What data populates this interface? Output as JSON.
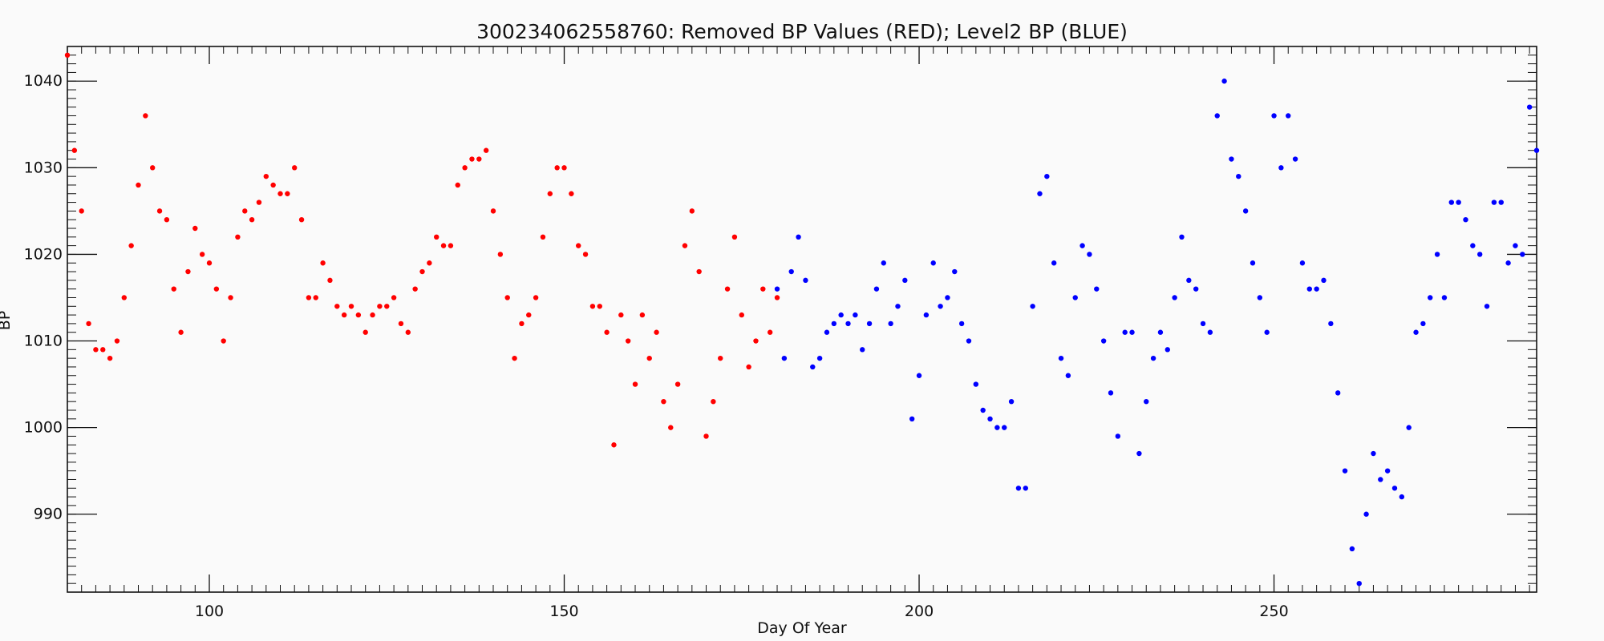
{
  "chart_data": {
    "type": "scatter",
    "title": "300234062558760: Removed BP Values (RED); Level2 BP (BLUE)",
    "xlabel": "Day Of Year",
    "ylabel": "BP",
    "xlim": [
      80,
      287
    ],
    "ylim": [
      981,
      1044
    ],
    "x_ticks": [
      100,
      150,
      200,
      250
    ],
    "y_ticks": [
      990,
      1000,
      1010,
      1020,
      1030,
      1040
    ],
    "grid": false,
    "legend": "none",
    "series": [
      {
        "name": "Removed BP Values (RED)",
        "color": "#ff0000",
        "points": [
          [
            80,
            1043
          ],
          [
            81,
            1032
          ],
          [
            82,
            1025
          ],
          [
            83,
            1012
          ],
          [
            84,
            1009
          ],
          [
            85,
            1009
          ],
          [
            86,
            1008
          ],
          [
            87,
            1010
          ],
          [
            88,
            1015
          ],
          [
            89,
            1021
          ],
          [
            90,
            1028
          ],
          [
            91,
            1036
          ],
          [
            92,
            1030
          ],
          [
            93,
            1025
          ],
          [
            94,
            1024
          ],
          [
            95,
            1016
          ],
          [
            96,
            1011
          ],
          [
            97,
            1018
          ],
          [
            98,
            1023
          ],
          [
            99,
            1020
          ],
          [
            100,
            1019
          ],
          [
            101,
            1016
          ],
          [
            102,
            1010
          ],
          [
            103,
            1015
          ],
          [
            104,
            1022
          ],
          [
            105,
            1025
          ],
          [
            106,
            1024
          ],
          [
            107,
            1026
          ],
          [
            108,
            1029
          ],
          [
            109,
            1028
          ],
          [
            110,
            1027
          ],
          [
            111,
            1027
          ],
          [
            112,
            1030
          ],
          [
            113,
            1024
          ],
          [
            114,
            1015
          ],
          [
            115,
            1015
          ],
          [
            116,
            1019
          ],
          [
            117,
            1017
          ],
          [
            118,
            1014
          ],
          [
            119,
            1013
          ],
          [
            120,
            1014
          ],
          [
            121,
            1013
          ],
          [
            122,
            1011
          ],
          [
            123,
            1013
          ],
          [
            124,
            1014
          ],
          [
            125,
            1014
          ],
          [
            126,
            1015
          ],
          [
            127,
            1012
          ],
          [
            128,
            1011
          ],
          [
            129,
            1016
          ],
          [
            130,
            1018
          ],
          [
            131,
            1019
          ],
          [
            132,
            1022
          ],
          [
            133,
            1021
          ],
          [
            134,
            1021
          ],
          [
            135,
            1028
          ],
          [
            136,
            1030
          ],
          [
            137,
            1031
          ],
          [
            138,
            1031
          ],
          [
            139,
            1032
          ],
          [
            140,
            1025
          ],
          [
            141,
            1020
          ],
          [
            142,
            1015
          ],
          [
            143,
            1008
          ],
          [
            144,
            1012
          ],
          [
            145,
            1013
          ],
          [
            146,
            1015
          ],
          [
            147,
            1022
          ],
          [
            148,
            1027
          ],
          [
            149,
            1030
          ],
          [
            150,
            1030
          ],
          [
            151,
            1027
          ],
          [
            152,
            1021
          ],
          [
            153,
            1020
          ],
          [
            154,
            1014
          ],
          [
            155,
            1014
          ],
          [
            156,
            1011
          ],
          [
            157,
            998
          ],
          [
            158,
            1013
          ],
          [
            159,
            1010
          ],
          [
            160,
            1005
          ],
          [
            161,
            1013
          ],
          [
            162,
            1008
          ],
          [
            163,
            1011
          ],
          [
            164,
            1003
          ],
          [
            165,
            1000
          ],
          [
            166,
            1005
          ],
          [
            167,
            1021
          ],
          [
            168,
            1025
          ],
          [
            169,
            1018
          ],
          [
            170,
            999
          ],
          [
            171,
            1003
          ],
          [
            172,
            1008
          ],
          [
            173,
            1016
          ],
          [
            174,
            1022
          ],
          [
            175,
            1013
          ],
          [
            176,
            1007
          ],
          [
            177,
            1010
          ],
          [
            178,
            1016
          ],
          [
            179,
            1011
          ],
          [
            180,
            1015
          ]
        ]
      },
      {
        "name": "Level2 BP (BLUE)",
        "color": "#0000ff",
        "points": [
          [
            180,
            1016
          ],
          [
            181,
            1008
          ],
          [
            182,
            1018
          ],
          [
            183,
            1022
          ],
          [
            184,
            1017
          ],
          [
            185,
            1007
          ],
          [
            186,
            1008
          ],
          [
            187,
            1011
          ],
          [
            188,
            1012
          ],
          [
            189,
            1013
          ],
          [
            190,
            1012
          ],
          [
            191,
            1013
          ],
          [
            192,
            1009
          ],
          [
            193,
            1012
          ],
          [
            194,
            1016
          ],
          [
            195,
            1019
          ],
          [
            196,
            1012
          ],
          [
            197,
            1014
          ],
          [
            198,
            1017
          ],
          [
            199,
            1001
          ],
          [
            200,
            1006
          ],
          [
            201,
            1013
          ],
          [
            202,
            1019
          ],
          [
            203,
            1014
          ],
          [
            204,
            1015
          ],
          [
            205,
            1018
          ],
          [
            206,
            1012
          ],
          [
            207,
            1010
          ],
          [
            208,
            1005
          ],
          [
            209,
            1002
          ],
          [
            210,
            1001
          ],
          [
            211,
            1000
          ],
          [
            212,
            1000
          ],
          [
            213,
            1003
          ],
          [
            214,
            993
          ],
          [
            215,
            993
          ],
          [
            216,
            1014
          ],
          [
            217,
            1027
          ],
          [
            218,
            1029
          ],
          [
            219,
            1019
          ],
          [
            220,
            1008
          ],
          [
            221,
            1006
          ],
          [
            222,
            1015
          ],
          [
            223,
            1021
          ],
          [
            224,
            1020
          ],
          [
            225,
            1016
          ],
          [
            226,
            1010
          ],
          [
            227,
            1004
          ],
          [
            228,
            999
          ],
          [
            229,
            1011
          ],
          [
            230,
            1011
          ],
          [
            231,
            997
          ],
          [
            232,
            1003
          ],
          [
            233,
            1008
          ],
          [
            234,
            1011
          ],
          [
            235,
            1009
          ],
          [
            236,
            1015
          ],
          [
            237,
            1022
          ],
          [
            238,
            1017
          ],
          [
            239,
            1016
          ],
          [
            240,
            1012
          ],
          [
            241,
            1011
          ],
          [
            242,
            1036
          ],
          [
            243,
            1040
          ],
          [
            244,
            1031
          ],
          [
            245,
            1029
          ],
          [
            246,
            1025
          ],
          [
            247,
            1019
          ],
          [
            248,
            1015
          ],
          [
            249,
            1011
          ],
          [
            250,
            1036
          ],
          [
            251,
            1030
          ],
          [
            252,
            1036
          ],
          [
            253,
            1031
          ],
          [
            254,
            1019
          ],
          [
            255,
            1016
          ],
          [
            256,
            1016
          ],
          [
            257,
            1017
          ],
          [
            258,
            1012
          ],
          [
            259,
            1004
          ],
          [
            260,
            995
          ],
          [
            261,
            986
          ],
          [
            262,
            982
          ],
          [
            263,
            990
          ],
          [
            264,
            997
          ],
          [
            265,
            994
          ],
          [
            266,
            995
          ],
          [
            267,
            993
          ],
          [
            268,
            992
          ],
          [
            269,
            1000
          ],
          [
            270,
            1011
          ],
          [
            271,
            1012
          ],
          [
            272,
            1015
          ],
          [
            273,
            1020
          ],
          [
            274,
            1015
          ],
          [
            275,
            1026
          ],
          [
            276,
            1026
          ],
          [
            277,
            1024
          ],
          [
            278,
            1021
          ],
          [
            279,
            1020
          ],
          [
            280,
            1014
          ],
          [
            281,
            1026
          ],
          [
            282,
            1026
          ],
          [
            283,
            1019
          ],
          [
            284,
            1021
          ],
          [
            285,
            1020
          ],
          [
            286,
            1037
          ],
          [
            287,
            1032
          ]
        ]
      }
    ]
  }
}
